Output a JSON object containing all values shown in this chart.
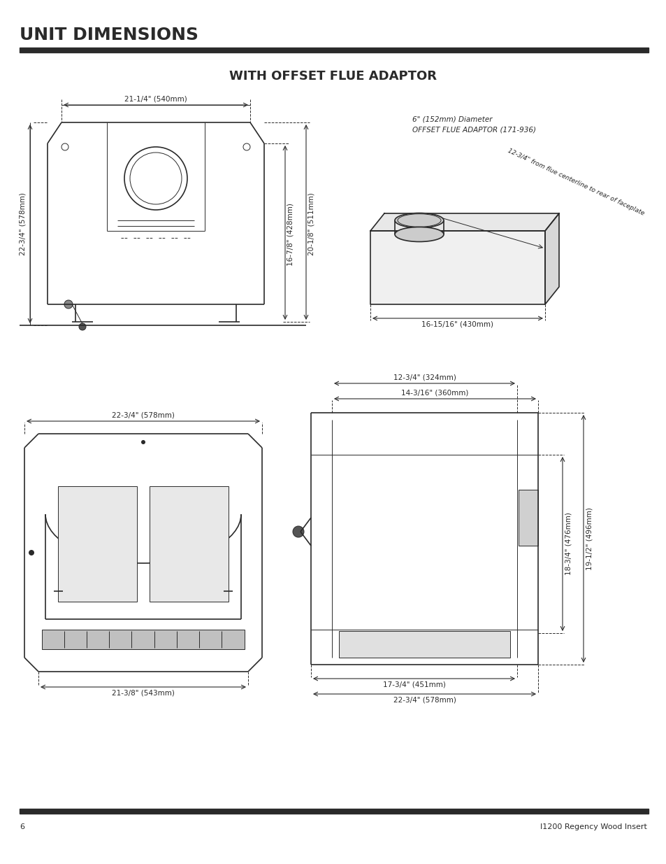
{
  "title": "UNIT DIMENSIONS",
  "subtitle": "WITH OFFSET FLUE ADAPTOR",
  "page_num": "6",
  "model": "I1200 Regency Wood Insert",
  "bg_color": "#ffffff",
  "line_color": "#2a2a2a",
  "text_color": "#2a2a2a",
  "title_fontsize": 18,
  "subtitle_fontsize": 13,
  "dim_fontsize": 7.5,
  "note_fontsize": 7,
  "footer_fontsize": 8,
  "dims_top_left": {
    "width_label": "21-1/4\" (540mm)",
    "height_label": "22-3/4\" (578mm)",
    "height2_label": "16-7/8\" (428mm)",
    "height3_label": "20-1/8\" (511mm)"
  },
  "dims_top_right": {
    "title1": "6\" (152mm) Diameter",
    "title2": "OFFSET FLUE ADAPTOR (171-936)",
    "angled_label": "12-3/4\" from flue centerline to rear of faceplate",
    "bottom_label": "16-15/16\" (430mm)"
  },
  "dims_bot_left": {
    "width_top": "22-3/4\" (578mm)",
    "width_bot": "21-3/8\" (543mm)"
  },
  "dims_bot_right": {
    "w1_label": "14-3/16\" (360mm)",
    "w2_label": "12-3/4\" (324mm)",
    "h1_label": "18-3/4\" (476mm)",
    "h2_label": "19-1/2\" (496mm)",
    "bw1_label": "17-3/4\" (451mm)",
    "bw2_label": "22-3/4\" (578mm)"
  }
}
